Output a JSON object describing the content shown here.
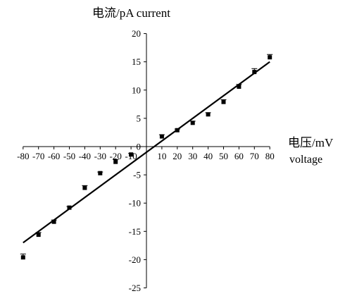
{
  "chart_data": {
    "type": "scatter",
    "ylabel": "电流/pA current",
    "xlabel": "电压/mV",
    "xlabel_sub": "voltage",
    "xlim": [
      -80,
      80
    ],
    "ylim": [
      -25,
      20
    ],
    "xticks": [
      -80,
      -70,
      -60,
      -50,
      -40,
      -30,
      -20,
      -10,
      10,
      20,
      30,
      40,
      50,
      60,
      70,
      80
    ],
    "yticks": [
      20,
      15,
      10,
      5,
      0,
      -5,
      -10,
      -15,
      -20,
      -25
    ],
    "axes_cross_at_origin": true,
    "grid": false,
    "series": [
      {
        "type": "scatter",
        "marker": "square",
        "color": "#000000",
        "points": [
          {
            "x": -80,
            "y": -19.6,
            "err": 0.6
          },
          {
            "x": -70,
            "y": -15.6,
            "err": 0.4
          },
          {
            "x": -60,
            "y": -13.3,
            "err": 0.3
          },
          {
            "x": -50,
            "y": -10.8,
            "err": 0.2
          },
          {
            "x": -40,
            "y": -7.3,
            "err": 0.4
          },
          {
            "x": -30,
            "y": -4.7,
            "err": 0.2
          },
          {
            "x": -20,
            "y": -2.7,
            "err": 0.4
          },
          {
            "x": -10,
            "y": -1.4,
            "err": 0.2
          },
          {
            "x": 10,
            "y": 1.8,
            "err": 0.3
          },
          {
            "x": 20,
            "y": 2.9,
            "err": 0.2
          },
          {
            "x": 30,
            "y": 4.2,
            "err": 0.3
          },
          {
            "x": 40,
            "y": 5.7,
            "err": 0.3
          },
          {
            "x": 50,
            "y": 7.9,
            "err": 0.4
          },
          {
            "x": 60,
            "y": 10.6,
            "err": 0.4
          },
          {
            "x": 70,
            "y": 13.2,
            "err": 0.6
          },
          {
            "x": 80,
            "y": 15.8,
            "err": 0.5
          }
        ]
      },
      {
        "type": "line",
        "role": "linear fit",
        "color": "#000000",
        "x": [
          -80,
          80
        ],
        "y": [
          -17.0,
          15.0
        ]
      }
    ]
  }
}
